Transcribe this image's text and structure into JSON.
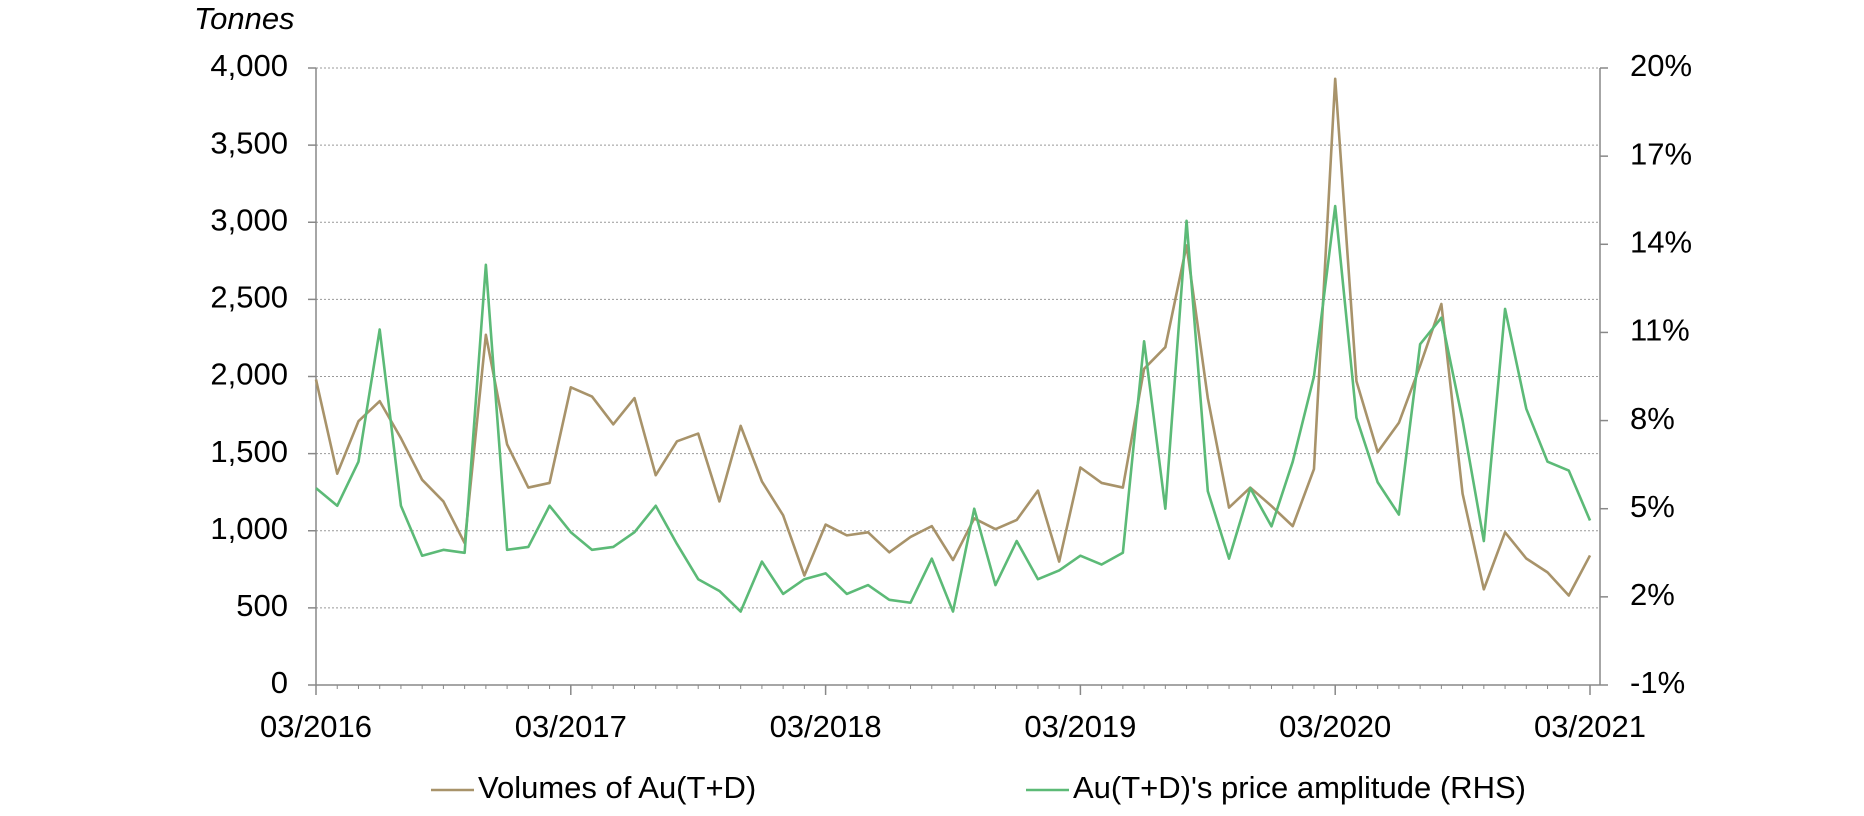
{
  "chart_data": {
    "type": "line",
    "y_unit_label": "Tonnes",
    "x": [
      "03/2016",
      "04/2016",
      "05/2016",
      "06/2016",
      "07/2016",
      "08/2016",
      "09/2016",
      "10/2016",
      "11/2016",
      "12/2016",
      "01/2017",
      "02/2017",
      "03/2017",
      "04/2017",
      "05/2017",
      "06/2017",
      "07/2017",
      "08/2017",
      "09/2017",
      "10/2017",
      "11/2017",
      "12/2017",
      "01/2018",
      "02/2018",
      "03/2018",
      "04/2018",
      "05/2018",
      "06/2018",
      "07/2018",
      "08/2018",
      "09/2018",
      "10/2018",
      "11/2018",
      "12/2018",
      "01/2019",
      "02/2019",
      "03/2019",
      "04/2019",
      "05/2019",
      "06/2019",
      "07/2019",
      "08/2019",
      "09/2019",
      "10/2019",
      "11/2019",
      "12/2019",
      "01/2020",
      "02/2020",
      "03/2020",
      "04/2020",
      "05/2020",
      "06/2020",
      "07/2020",
      "08/2020",
      "09/2020",
      "10/2020",
      "11/2020",
      "12/2020",
      "01/2021",
      "02/2021",
      "03/2021"
    ],
    "xticks": [
      "03/2016",
      "03/2017",
      "03/2018",
      "03/2019",
      "03/2020",
      "03/2021"
    ],
    "series": [
      {
        "name": "Volumes of Au(T+D)",
        "color": "#a8936a",
        "axis": "y",
        "values": [
          1980,
          1370,
          1710,
          1840,
          1600,
          1330,
          1190,
          920,
          2270,
          1560,
          1280,
          1310,
          1930,
          1870,
          1690,
          1860,
          1360,
          1580,
          1630,
          1190,
          1680,
          1320,
          1100,
          710,
          1040,
          970,
          990,
          860,
          960,
          1030,
          810,
          1080,
          1010,
          1070,
          1260,
          800,
          1410,
          1310,
          1280,
          2050,
          2190,
          2850,
          1860,
          1150,
          1280,
          1160,
          1030,
          1400,
          3930,
          1970,
          1510,
          1700,
          2070,
          2470,
          1240,
          620,
          990,
          820,
          730,
          580,
          840
        ]
      },
      {
        "name": "Au(T+D)'s price amplitude (RHS)",
        "color": "#5cba77",
        "axis": "y2",
        "values": [
          5.7,
          5.1,
          6.6,
          11.1,
          5.1,
          3.4,
          3.6,
          3.5,
          13.3,
          3.6,
          3.7,
          5.1,
          4.2,
          3.6,
          3.7,
          4.2,
          5.1,
          3.8,
          2.6,
          2.2,
          1.5,
          3.2,
          2.1,
          2.6,
          2.8,
          2.1,
          2.4,
          1.9,
          1.8,
          3.3,
          1.5,
          5.0,
          2.4,
          3.9,
          2.6,
          2.9,
          3.4,
          3.1,
          3.5,
          10.7,
          5.0,
          14.8,
          5.6,
          3.3,
          5.7,
          4.4,
          6.6,
          9.5,
          15.3,
          8.1,
          5.9,
          4.8,
          10.6,
          11.5,
          8.0,
          3.9,
          11.8,
          8.4,
          6.6,
          6.3,
          4.6
        ]
      }
    ],
    "ylim": [
      0,
      4000
    ],
    "yticks": [
      0,
      500,
      {
        "value": 1000,
        "label": "1,000"
      },
      {
        "value": 1500,
        "label": "1,500"
      },
      {
        "value": 2000,
        "label": "2,000"
      },
      {
        "value": 2500,
        "label": "2,500"
      },
      {
        "value": 3000,
        "label": "3,000"
      },
      {
        "value": 3500,
        "label": "3,500"
      },
      {
        "value": 4000,
        "label": "4,000"
      }
    ],
    "y2lim": [
      -1,
      20
    ],
    "y2ticks": [
      {
        "value": -1,
        "label": "-1%"
      },
      {
        "value": 2,
        "label": "2%"
      },
      {
        "value": 5,
        "label": "5%"
      },
      {
        "value": 8,
        "label": "8%"
      },
      {
        "value": 11,
        "label": "11%"
      },
      {
        "value": 14,
        "label": "14%"
      },
      {
        "value": 17,
        "label": "17%"
      },
      {
        "value": 20,
        "label": "20%"
      }
    ],
    "grid": true,
    "legend": "bottom"
  }
}
